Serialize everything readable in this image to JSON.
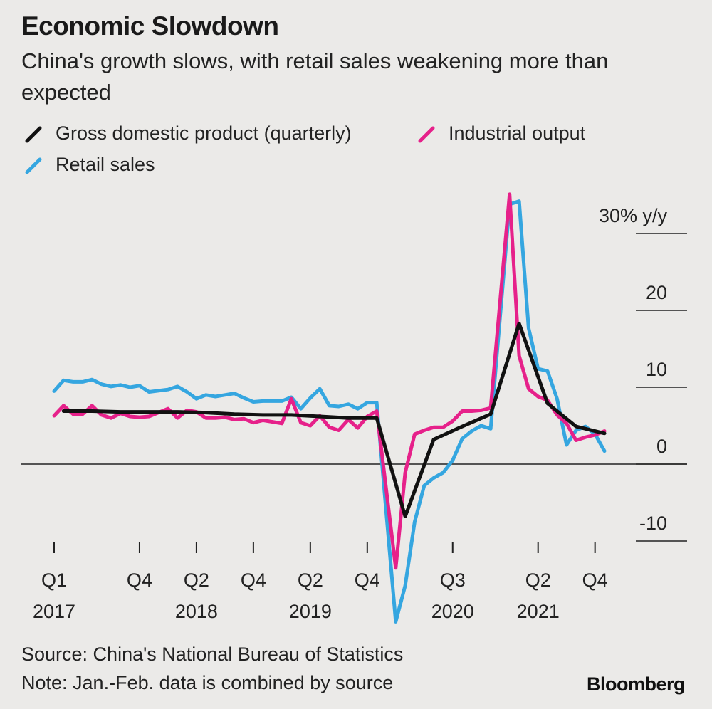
{
  "header": {
    "title": "Economic Slowdown",
    "subtitle": "China's growth slows, with retail sales weakening more than expected"
  },
  "legend": [
    {
      "label": "Gross domestic product (quarterly)",
      "color": "#111111"
    },
    {
      "label": "Industrial output",
      "color": "#e6218a"
    },
    {
      "label": "Retail sales",
      "color": "#35a6e0"
    }
  ],
  "footer": {
    "source": "Source: China's National Bureau of Statistics",
    "note": "Note: Jan.-Feb. data is combined by source",
    "brand": "Bloomberg"
  },
  "chart_data": {
    "type": "line",
    "y_unit_label": "30% y/y",
    "ylim": [
      -11,
      35
    ],
    "yticks": [
      {
        "value": 30,
        "label": "30% y/y"
      },
      {
        "value": 20,
        "label": "20"
      },
      {
        "value": 10,
        "label": "10"
      },
      {
        "value": 0,
        "label": "0"
      },
      {
        "value": -10,
        "label": "-10"
      }
    ],
    "x_range": [
      "2017-02",
      "2021-12"
    ],
    "xticks": [
      {
        "x": "2017-02",
        "label": "Q1",
        "year": "2017"
      },
      {
        "x": "2017-11",
        "label": "Q4",
        "year": ""
      },
      {
        "x": "2018-05",
        "label": "Q2",
        "year": "2018"
      },
      {
        "x": "2018-11",
        "label": "Q4",
        "year": ""
      },
      {
        "x": "2019-05",
        "label": "Q2",
        "year": "2019"
      },
      {
        "x": "2019-11",
        "label": "Q4",
        "year": ""
      },
      {
        "x": "2020-08",
        "label": "Q3",
        "year": "2020"
      },
      {
        "x": "2021-05",
        "label": "Q2",
        "year": "2021"
      },
      {
        "x": "2021-11",
        "label": "Q4",
        "year": ""
      }
    ],
    "series": [
      {
        "name": "Gross domestic product (quarterly)",
        "color": "#111111",
        "points": [
          [
            "2017-03",
            6.9
          ],
          [
            "2017-06",
            6.9
          ],
          [
            "2017-09",
            6.8
          ],
          [
            "2017-12",
            6.8
          ],
          [
            "2018-03",
            6.8
          ],
          [
            "2018-06",
            6.7
          ],
          [
            "2018-09",
            6.5
          ],
          [
            "2018-12",
            6.4
          ],
          [
            "2019-03",
            6.4
          ],
          [
            "2019-06",
            6.2
          ],
          [
            "2019-09",
            6.0
          ],
          [
            "2019-12",
            6.0
          ],
          [
            "2020-03",
            -6.8
          ],
          [
            "2020-06",
            3.2
          ],
          [
            "2020-09",
            4.9
          ],
          [
            "2020-12",
            6.5
          ],
          [
            "2021-03",
            18.3
          ],
          [
            "2021-06",
            7.9
          ],
          [
            "2021-09",
            4.9
          ],
          [
            "2021-12",
            4.0
          ]
        ]
      },
      {
        "name": "Industrial output",
        "color": "#e6218a",
        "points": [
          [
            "2017-02",
            6.3
          ],
          [
            "2017-03",
            7.6
          ],
          [
            "2017-04",
            6.5
          ],
          [
            "2017-05",
            6.5
          ],
          [
            "2017-06",
            7.6
          ],
          [
            "2017-07",
            6.4
          ],
          [
            "2017-08",
            6.0
          ],
          [
            "2017-09",
            6.6
          ],
          [
            "2017-10",
            6.2
          ],
          [
            "2017-11",
            6.1
          ],
          [
            "2017-12",
            6.2
          ],
          [
            "2018-02",
            7.2
          ],
          [
            "2018-03",
            6.0
          ],
          [
            "2018-04",
            7.0
          ],
          [
            "2018-05",
            6.8
          ],
          [
            "2018-06",
            6.0
          ],
          [
            "2018-07",
            6.0
          ],
          [
            "2018-08",
            6.1
          ],
          [
            "2018-09",
            5.8
          ],
          [
            "2018-10",
            5.9
          ],
          [
            "2018-11",
            5.4
          ],
          [
            "2018-12",
            5.7
          ],
          [
            "2019-02",
            5.3
          ],
          [
            "2019-03",
            8.5
          ],
          [
            "2019-04",
            5.4
          ],
          [
            "2019-05",
            5.0
          ],
          [
            "2019-06",
            6.3
          ],
          [
            "2019-07",
            4.8
          ],
          [
            "2019-08",
            4.4
          ],
          [
            "2019-09",
            5.8
          ],
          [
            "2019-10",
            4.7
          ],
          [
            "2019-11",
            6.2
          ],
          [
            "2019-12",
            6.9
          ],
          [
            "2020-02",
            -13.5
          ],
          [
            "2020-03",
            -1.1
          ],
          [
            "2020-04",
            3.9
          ],
          [
            "2020-05",
            4.4
          ],
          [
            "2020-06",
            4.8
          ],
          [
            "2020-07",
            4.8
          ],
          [
            "2020-08",
            5.6
          ],
          [
            "2020-09",
            6.9
          ],
          [
            "2020-10",
            6.9
          ],
          [
            "2020-11",
            7.0
          ],
          [
            "2020-12",
            7.3
          ],
          [
            "2021-02",
            35.1
          ],
          [
            "2021-03",
            14.1
          ],
          [
            "2021-04",
            9.8
          ],
          [
            "2021-05",
            8.8
          ],
          [
            "2021-06",
            8.3
          ],
          [
            "2021-07",
            6.4
          ],
          [
            "2021-08",
            5.3
          ],
          [
            "2021-09",
            3.1
          ],
          [
            "2021-10",
            3.5
          ],
          [
            "2021-11",
            3.8
          ],
          [
            "2021-12",
            4.3
          ]
        ]
      },
      {
        "name": "Retail sales",
        "color": "#35a6e0",
        "points": [
          [
            "2017-02",
            9.5
          ],
          [
            "2017-03",
            10.9
          ],
          [
            "2017-04",
            10.7
          ],
          [
            "2017-05",
            10.7
          ],
          [
            "2017-06",
            11.0
          ],
          [
            "2017-07",
            10.4
          ],
          [
            "2017-08",
            10.1
          ],
          [
            "2017-09",
            10.3
          ],
          [
            "2017-10",
            10.0
          ],
          [
            "2017-11",
            10.2
          ],
          [
            "2017-12",
            9.4
          ],
          [
            "2018-02",
            9.7
          ],
          [
            "2018-03",
            10.1
          ],
          [
            "2018-04",
            9.4
          ],
          [
            "2018-05",
            8.5
          ],
          [
            "2018-06",
            9.0
          ],
          [
            "2018-07",
            8.8
          ],
          [
            "2018-08",
            9.0
          ],
          [
            "2018-09",
            9.2
          ],
          [
            "2018-10",
            8.6
          ],
          [
            "2018-11",
            8.1
          ],
          [
            "2018-12",
            8.2
          ],
          [
            "2019-02",
            8.2
          ],
          [
            "2019-03",
            8.7
          ],
          [
            "2019-04",
            7.2
          ],
          [
            "2019-05",
            8.6
          ],
          [
            "2019-06",
            9.8
          ],
          [
            "2019-07",
            7.6
          ],
          [
            "2019-08",
            7.5
          ],
          [
            "2019-09",
            7.8
          ],
          [
            "2019-10",
            7.2
          ],
          [
            "2019-11",
            8.0
          ],
          [
            "2019-12",
            8.0
          ],
          [
            "2020-02",
            -20.5
          ],
          [
            "2020-03",
            -15.8
          ],
          [
            "2020-04",
            -7.5
          ],
          [
            "2020-05",
            -2.8
          ],
          [
            "2020-06",
            -1.8
          ],
          [
            "2020-07",
            -1.1
          ],
          [
            "2020-08",
            0.5
          ],
          [
            "2020-09",
            3.3
          ],
          [
            "2020-10",
            4.3
          ],
          [
            "2020-11",
            5.0
          ],
          [
            "2020-12",
            4.6
          ],
          [
            "2021-02",
            33.8
          ],
          [
            "2021-03",
            34.2
          ],
          [
            "2021-04",
            17.7
          ],
          [
            "2021-05",
            12.4
          ],
          [
            "2021-06",
            12.1
          ],
          [
            "2021-07",
            8.5
          ],
          [
            "2021-08",
            2.5
          ],
          [
            "2021-09",
            4.4
          ],
          [
            "2021-10",
            4.9
          ],
          [
            "2021-11",
            3.9
          ],
          [
            "2021-12",
            1.7
          ]
        ]
      }
    ]
  }
}
